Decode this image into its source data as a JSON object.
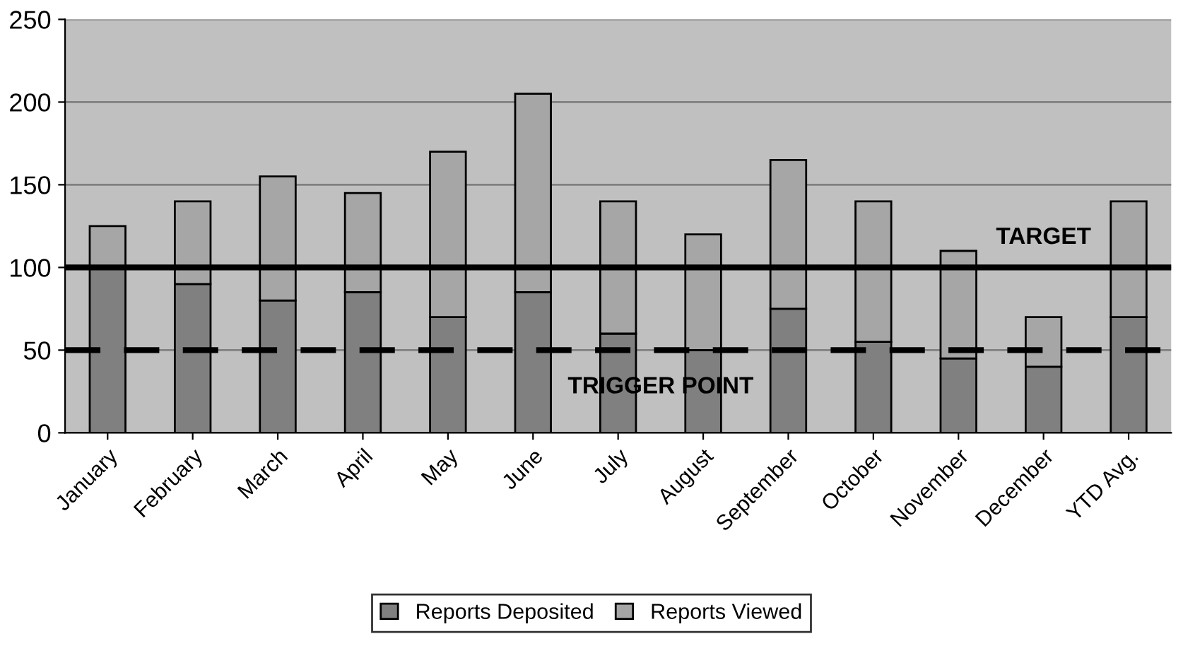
{
  "chart_data": {
    "type": "bar",
    "stacked": true,
    "categories": [
      "January",
      "February",
      "March",
      "April",
      "May",
      "June",
      "July",
      "August",
      "September",
      "October",
      "November",
      "December",
      "YTD Avg."
    ],
    "series": [
      {
        "name": "Reports Deposited",
        "color": "#808080",
        "values": [
          100,
          90,
          80,
          85,
          70,
          85,
          60,
          50,
          75,
          55,
          45,
          40,
          70
        ]
      },
      {
        "name": "Reports Viewed",
        "color": "#a6a6a6",
        "values": [
          25,
          50,
          75,
          60,
          100,
          120,
          80,
          70,
          90,
          85,
          65,
          30,
          70
        ]
      }
    ],
    "ylim": [
      0,
      250
    ],
    "yticks": [
      0,
      50,
      100,
      150,
      200,
      250
    ],
    "grid": "y",
    "legend": "bottom",
    "ref_lines": [
      {
        "axis": "y",
        "value": 100,
        "label": "TARGET",
        "color": "#000000",
        "line_style": "solid"
      },
      {
        "axis": "y",
        "value": 50,
        "label": "TRIGGER POINT",
        "color": "#000000",
        "line_style": "dashed"
      }
    ]
  }
}
